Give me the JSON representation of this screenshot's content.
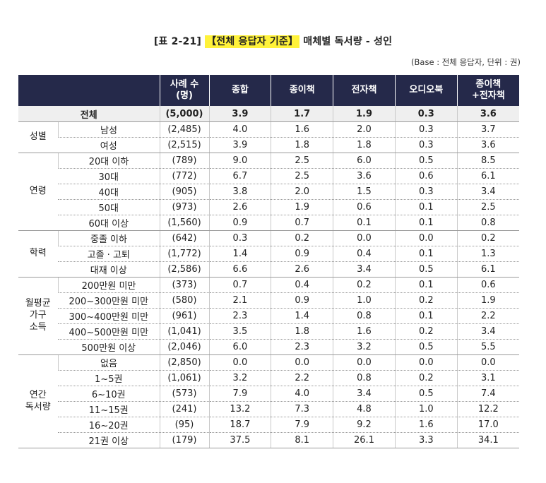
{
  "title": {
    "prefix": "[표 2-21] ",
    "highlight": "【전체 응답자 기준】",
    "suffix": " 매체별 독서량 - 성인"
  },
  "note": "(Base : 전체 응답자, 단위 : 권)",
  "headers": [
    "사례 수\n(명)",
    "종합",
    "종이책",
    "전자책",
    "오디오북",
    "종이책\n+전자책"
  ],
  "total": {
    "label": "전체",
    "cells": [
      "(5,000)",
      "3.9",
      "1.7",
      "1.9",
      "0.3",
      "3.6"
    ]
  },
  "groups": [
    {
      "label": "성별",
      "rows": [
        {
          "cat": "남성",
          "cells": [
            "(2,485)",
            "4.0",
            "1.6",
            "2.0",
            "0.3",
            "3.7"
          ]
        },
        {
          "cat": "여성",
          "cells": [
            "(2,515)",
            "3.9",
            "1.8",
            "1.8",
            "0.3",
            "3.6"
          ]
        }
      ]
    },
    {
      "label": "연령",
      "rows": [
        {
          "cat": "20대 이하",
          "cells": [
            "(789)",
            "9.0",
            "2.5",
            "6.0",
            "0.5",
            "8.5"
          ]
        },
        {
          "cat": "30대",
          "cells": [
            "(772)",
            "6.7",
            "2.5",
            "3.6",
            "0.6",
            "6.1"
          ]
        },
        {
          "cat": "40대",
          "cells": [
            "(905)",
            "3.8",
            "2.0",
            "1.5",
            "0.3",
            "3.4"
          ]
        },
        {
          "cat": "50대",
          "cells": [
            "(973)",
            "2.6",
            "1.9",
            "0.6",
            "0.1",
            "2.5"
          ]
        },
        {
          "cat": "60대 이상",
          "cells": [
            "(1,560)",
            "0.9",
            "0.7",
            "0.1",
            "0.1",
            "0.8"
          ]
        }
      ]
    },
    {
      "label": "학력",
      "rows": [
        {
          "cat": "중졸 이하",
          "cells": [
            "(642)",
            "0.3",
            "0.2",
            "0.0",
            "0.0",
            "0.2"
          ]
        },
        {
          "cat": "고졸 · 고퇴",
          "cells": [
            "(1,772)",
            "1.4",
            "0.9",
            "0.4",
            "0.1",
            "1.3"
          ]
        },
        {
          "cat": "대재 이상",
          "cells": [
            "(2,586)",
            "6.6",
            "2.6",
            "3.4",
            "0.5",
            "6.1"
          ]
        }
      ]
    },
    {
      "label": "월평균\n가구\n소득",
      "rows": [
        {
          "cat": "200만원 미만",
          "cells": [
            "(373)",
            "0.7",
            "0.4",
            "0.2",
            "0.1",
            "0.6"
          ]
        },
        {
          "cat": "200~300만원 미만",
          "cells": [
            "(580)",
            "2.1",
            "0.9",
            "1.0",
            "0.2",
            "1.9"
          ]
        },
        {
          "cat": "300~400만원 미만",
          "cells": [
            "(961)",
            "2.3",
            "1.4",
            "0.8",
            "0.1",
            "2.2"
          ]
        },
        {
          "cat": "400~500만원 미만",
          "cells": [
            "(1,041)",
            "3.5",
            "1.8",
            "1.6",
            "0.2",
            "3.4"
          ]
        },
        {
          "cat": "500만원 이상",
          "cells": [
            "(2,046)",
            "6.0",
            "2.3",
            "3.2",
            "0.5",
            "5.5"
          ]
        }
      ]
    },
    {
      "label": "연간\n독서량",
      "rows": [
        {
          "cat": "없음",
          "cells": [
            "(2,850)",
            "0.0",
            "0.0",
            "0.0",
            "0.0",
            "0.0"
          ]
        },
        {
          "cat": "1~5권",
          "cells": [
            "(1,061)",
            "3.2",
            "2.2",
            "0.8",
            "0.2",
            "3.1"
          ]
        },
        {
          "cat": "6~10권",
          "cells": [
            "(573)",
            "7.9",
            "4.0",
            "3.4",
            "0.5",
            "7.4"
          ]
        },
        {
          "cat": "11~15권",
          "cells": [
            "(241)",
            "13.2",
            "7.3",
            "4.8",
            "1.0",
            "12.2"
          ]
        },
        {
          "cat": "16~20권",
          "cells": [
            "(95)",
            "18.7",
            "7.9",
            "9.2",
            "1.6",
            "17.0"
          ]
        },
        {
          "cat": "21권 이상",
          "cells": [
            "(179)",
            "37.5",
            "8.1",
            "26.1",
            "3.3",
            "34.1"
          ]
        }
      ]
    }
  ]
}
